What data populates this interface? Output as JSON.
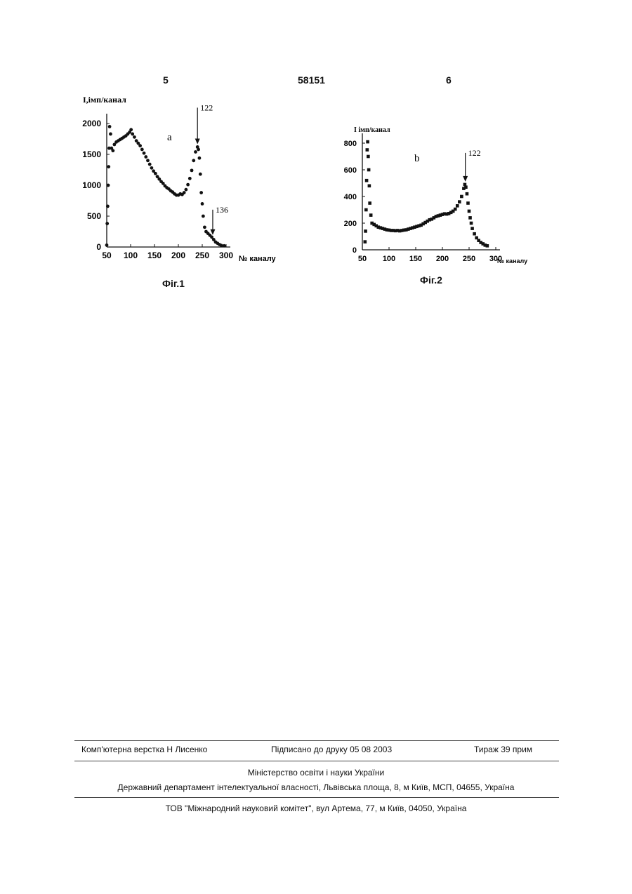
{
  "header": {
    "left_page_number": "5",
    "patent_number": "58151",
    "right_page_number": "6"
  },
  "figure1": {
    "caption": "Фіг.1",
    "panel_letter": "a",
    "ylabel": "I,імп/канал",
    "xlabel": "№ каналу",
    "peak_label_main": "122",
    "peak_label_secondary": "136"
  },
  "figure2": {
    "caption": "Фіг.2",
    "panel_letter": "b",
    "ylabel": "I імп/канал",
    "xlabel": "№ каналу",
    "peak_label_main": "122"
  },
  "chart_data": [
    {
      "type": "scatter",
      "name_ref": "Фіг.1",
      "xlim": [
        50,
        300
      ],
      "ylim": [
        0,
        2000
      ],
      "x_ticks": [
        "50",
        "100",
        "150",
        "200",
        "250",
        "300"
      ],
      "y_ticks": [
        "0",
        "500",
        "1000",
        "1500",
        "2000"
      ],
      "points": [
        [
          50,
          30
        ],
        [
          51,
          380
        ],
        [
          52,
          660
        ],
        [
          53,
          1000
        ],
        [
          54,
          1300
        ],
        [
          55,
          1600
        ],
        [
          56,
          1950
        ],
        [
          58,
          1830
        ],
        [
          60,
          1600
        ],
        [
          63,
          1560
        ],
        [
          66,
          1660
        ],
        [
          70,
          1700
        ],
        [
          74,
          1720
        ],
        [
          78,
          1740
        ],
        [
          82,
          1760
        ],
        [
          86,
          1780
        ],
        [
          90,
          1800
        ],
        [
          94,
          1830
        ],
        [
          98,
          1860
        ],
        [
          101,
          1900
        ],
        [
          104,
          1830
        ],
        [
          108,
          1780
        ],
        [
          112,
          1720
        ],
        [
          116,
          1680
        ],
        [
          120,
          1640
        ],
        [
          124,
          1580
        ],
        [
          128,
          1520
        ],
        [
          132,
          1460
        ],
        [
          136,
          1400
        ],
        [
          140,
          1340
        ],
        [
          144,
          1280
        ],
        [
          148,
          1230
        ],
        [
          152,
          1190
        ],
        [
          156,
          1140
        ],
        [
          160,
          1100
        ],
        [
          164,
          1060
        ],
        [
          168,
          1030
        ],
        [
          172,
          990
        ],
        [
          176,
          960
        ],
        [
          180,
          940
        ],
        [
          184,
          910
        ],
        [
          188,
          890
        ],
        [
          192,
          860
        ],
        [
          196,
          840
        ],
        [
          200,
          840
        ],
        [
          204,
          860
        ],
        [
          208,
          850
        ],
        [
          212,
          880
        ],
        [
          216,
          930
        ],
        [
          220,
          1010
        ],
        [
          224,
          1110
        ],
        [
          228,
          1240
        ],
        [
          232,
          1400
        ],
        [
          236,
          1540
        ],
        [
          240,
          1620
        ],
        [
          242,
          1580
        ],
        [
          244,
          1440
        ],
        [
          246,
          1180
        ],
        [
          248,
          880
        ],
        [
          250,
          700
        ],
        [
          252,
          500
        ],
        [
          255,
          320
        ],
        [
          258,
          250
        ],
        [
          262,
          220
        ],
        [
          266,
          190
        ],
        [
          270,
          160
        ],
        [
          274,
          120
        ],
        [
          278,
          80
        ],
        [
          282,
          60
        ],
        [
          286,
          40
        ],
        [
          290,
          25
        ],
        [
          296,
          20
        ]
      ],
      "annotations": [
        {
          "label": "122",
          "x": 240,
          "y": 1620
        },
        {
          "label": "136",
          "x": 272,
          "y": 150
        }
      ]
    },
    {
      "type": "scatter",
      "name_ref": "Фіг.2",
      "xlim": [
        50,
        300
      ],
      "ylim": [
        0,
        800
      ],
      "x_ticks": [
        "50",
        "100",
        "150",
        "200",
        "250",
        "300"
      ],
      "y_ticks": [
        "0",
        "200",
        "400",
        "600",
        "800"
      ],
      "points": [
        [
          55,
          60
        ],
        [
          56,
          140
        ],
        [
          57,
          300
        ],
        [
          58,
          520
        ],
        [
          59,
          750
        ],
        [
          60,
          810
        ],
        [
          61,
          700
        ],
        [
          62,
          600
        ],
        [
          63,
          480
        ],
        [
          64,
          350
        ],
        [
          66,
          260
        ],
        [
          68,
          200
        ],
        [
          72,
          190
        ],
        [
          76,
          180
        ],
        [
          80,
          170
        ],
        [
          84,
          165
        ],
        [
          88,
          160
        ],
        [
          92,
          155
        ],
        [
          96,
          150
        ],
        [
          100,
          148
        ],
        [
          104,
          145
        ],
        [
          108,
          145
        ],
        [
          112,
          143
        ],
        [
          116,
          145
        ],
        [
          120,
          142
        ],
        [
          124,
          145
        ],
        [
          128,
          148
        ],
        [
          132,
          150
        ],
        [
          136,
          155
        ],
        [
          140,
          160
        ],
        [
          144,
          165
        ],
        [
          148,
          170
        ],
        [
          152,
          175
        ],
        [
          156,
          180
        ],
        [
          160,
          185
        ],
        [
          164,
          195
        ],
        [
          168,
          205
        ],
        [
          172,
          215
        ],
        [
          176,
          225
        ],
        [
          180,
          230
        ],
        [
          184,
          240
        ],
        [
          188,
          250
        ],
        [
          192,
          255
        ],
        [
          196,
          260
        ],
        [
          200,
          265
        ],
        [
          204,
          270
        ],
        [
          208,
          268
        ],
        [
          212,
          272
        ],
        [
          216,
          280
        ],
        [
          220,
          290
        ],
        [
          224,
          305
        ],
        [
          228,
          330
        ],
        [
          232,
          360
        ],
        [
          236,
          400
        ],
        [
          240,
          460
        ],
        [
          242,
          490
        ],
        [
          244,
          470
        ],
        [
          246,
          420
        ],
        [
          248,
          350
        ],
        [
          250,
          290
        ],
        [
          252,
          240
        ],
        [
          254,
          200
        ],
        [
          256,
          160
        ],
        [
          260,
          120
        ],
        [
          264,
          90
        ],
        [
          268,
          70
        ],
        [
          272,
          55
        ],
        [
          276,
          45
        ],
        [
          280,
          35
        ],
        [
          284,
          30
        ]
      ],
      "annotations": [
        {
          "label": "122",
          "x": 243,
          "y": 490
        }
      ]
    }
  ],
  "footer": {
    "layout": "Комп'ютерна верстка Н  Лисенко",
    "signed": "Підписано до друку 05 08 2003",
    "circulation": "Тираж 39 прим",
    "ministry": "Міністерство освіти і науки України",
    "department": "Державний департамент інтелектуальної власності, Львівська площа, 8, м  Київ, МСП, 04655, Україна",
    "publisher": "ТОВ \"Міжнародний науковий комітет\", вул  Артема, 77, м  Київ, 04050, Україна"
  }
}
